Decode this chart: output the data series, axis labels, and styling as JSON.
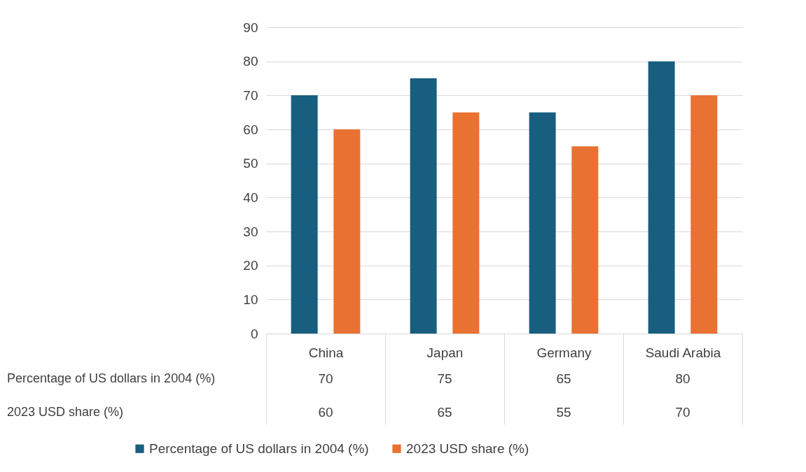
{
  "chart_data": {
    "type": "bar",
    "categories": [
      "China",
      "Japan",
      "Germany",
      "Saudi Arabia"
    ],
    "series": [
      {
        "name": "Percentage of US dollars in 2004 (%)",
        "color": "#175e7f",
        "values": [
          70,
          75,
          65,
          80
        ]
      },
      {
        "name": "2023 USD share (%)",
        "color": "#e97132",
        "values": [
          60,
          65,
          55,
          70
        ]
      }
    ],
    "ylim": [
      0,
      90
    ],
    "yticks": [
      0,
      10,
      20,
      30,
      40,
      50,
      60,
      70,
      80,
      90
    ],
    "grid": "y",
    "legend": "bottom",
    "data_labels": true
  }
}
